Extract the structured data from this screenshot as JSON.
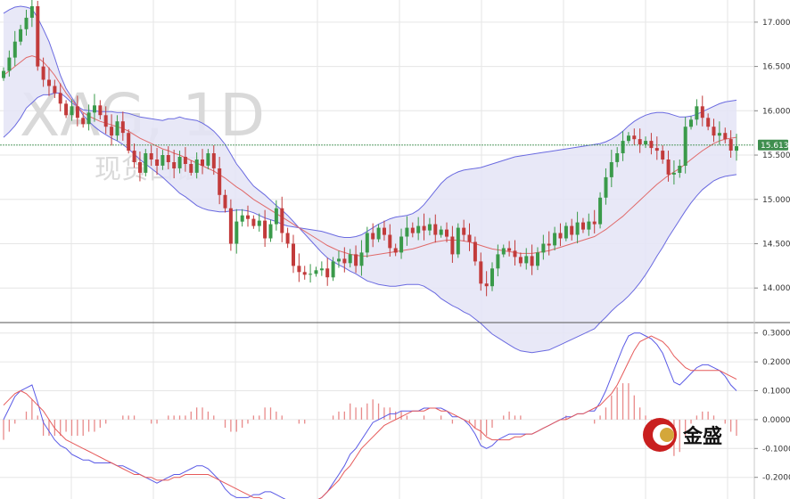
{
  "watermark": {
    "symbol": "XAG, 1D",
    "subtitle": "现货白银"
  },
  "logo": {
    "text": "金盛"
  },
  "colors": {
    "up": "#3a9a4a",
    "down": "#c23b3b",
    "band": "#6a6ae0",
    "band_fill": "#e4e4f6",
    "ma": "#e06a6a",
    "macd": "#5a5ae6",
    "signal": "#e65a5a",
    "hist": "#e88a8a",
    "price_tag": "#3e8e4e",
    "grid": "#e6e6e6"
  },
  "chart_data": [
    {
      "type": "candlestick",
      "symbol": "XAG",
      "interval": "1D",
      "y_ticks": [
        "17.000",
        "16.500",
        "16.000",
        "15.500",
        "15.000",
        "14.500",
        "14.000"
      ],
      "y_tick_values": [
        17.0,
        16.5,
        16.0,
        15.5,
        15.0,
        14.5,
        14.0
      ],
      "ylim": [
        13.63,
        17.25
      ],
      "last_price": 15.613,
      "last_price_label": "15.613",
      "indicators": [
        "Bollinger Bands",
        "Moving Average"
      ],
      "grid": true,
      "closes": [
        16.45,
        16.6,
        16.78,
        16.92,
        17.05,
        17.18,
        16.5,
        16.35,
        16.28,
        16.2,
        16.08,
        15.95,
        16.05,
        15.92,
        15.85,
        15.98,
        16.06,
        15.95,
        15.82,
        15.72,
        15.88,
        15.75,
        15.55,
        15.42,
        15.3,
        15.52,
        15.45,
        15.38,
        15.5,
        15.42,
        15.35,
        15.48,
        15.4,
        15.3,
        15.45,
        15.38,
        15.52,
        15.35,
        15.05,
        14.9,
        14.5,
        14.75,
        14.82,
        14.78,
        14.7,
        14.76,
        14.56,
        14.72,
        14.9,
        14.62,
        14.5,
        14.25,
        14.18,
        14.15,
        14.16,
        14.2,
        14.22,
        14.12,
        14.3,
        14.33,
        14.28,
        14.38,
        14.25,
        14.4,
        14.62,
        14.55,
        14.68,
        14.6,
        14.45,
        14.4,
        14.58,
        14.68,
        14.62,
        14.7,
        14.65,
        14.72,
        14.6,
        14.66,
        14.58,
        14.38,
        14.68,
        14.6,
        14.52,
        14.3,
        14.05,
        14.02,
        14.22,
        14.38,
        14.45,
        14.42,
        14.35,
        14.28,
        14.36,
        14.25,
        14.4,
        14.5,
        14.48,
        14.62,
        14.56,
        14.7,
        14.6,
        14.74,
        14.66,
        14.75,
        14.72,
        15.02,
        15.25,
        15.42,
        15.52,
        15.66,
        15.72,
        15.68,
        15.62,
        15.66,
        15.58,
        15.55,
        15.45,
        15.28,
        15.3,
        15.38,
        15.82,
        15.9,
        16.05,
        15.92,
        15.82,
        15.72,
        15.75,
        15.68,
        15.55,
        15.6
      ],
      "bb_upper": [
        17.1,
        17.14,
        17.17,
        17.18,
        17.17,
        17.15,
        17.05,
        16.92,
        16.78,
        16.6,
        16.4,
        16.25,
        16.15,
        16.05,
        15.95,
        15.88,
        15.82,
        15.77,
        15.73,
        15.69,
        15.66,
        15.62,
        15.57,
        15.51,
        15.45,
        15.4,
        15.35,
        15.3,
        15.25,
        15.19,
        15.13,
        15.07,
        15.03,
        14.98,
        14.93,
        14.9,
        14.88,
        14.87,
        14.86,
        14.86,
        14.87,
        14.88,
        14.88,
        14.87,
        14.85,
        14.82,
        14.79,
        14.77,
        14.75,
        14.72,
        14.7,
        14.69,
        14.68,
        14.67,
        14.66,
        14.65,
        14.64,
        14.62,
        14.6,
        14.58,
        14.57,
        14.57,
        14.58,
        14.6,
        14.64,
        14.68,
        14.72,
        14.75,
        14.78,
        14.8,
        14.81,
        14.82,
        14.84,
        14.88,
        14.94,
        15.02,
        15.1,
        15.18,
        15.24,
        15.28,
        15.31,
        15.33,
        15.34,
        15.35,
        15.36,
        15.38,
        15.4,
        15.42,
        15.44,
        15.46,
        15.48,
        15.49,
        15.5,
        15.51,
        15.52,
        15.53,
        15.54,
        15.55,
        15.56,
        15.57,
        15.58,
        15.59,
        15.6,
        15.61,
        15.62,
        15.63,
        15.65,
        15.68,
        15.72,
        15.77,
        15.83,
        15.88,
        15.92,
        15.95,
        15.97,
        15.98,
        15.98,
        15.97,
        15.95,
        15.93,
        15.93,
        15.94,
        15.96,
        15.99,
        16.02,
        16.05,
        16.08,
        16.1,
        16.11,
        16.12
      ],
      "bb_mid": [
        16.4,
        16.45,
        16.5,
        16.55,
        16.6,
        16.62,
        16.6,
        16.55,
        16.48,
        16.4,
        16.3,
        16.2,
        16.12,
        16.05,
        15.98,
        15.94,
        15.91,
        15.88,
        15.86,
        15.84,
        15.82,
        15.8,
        15.77,
        15.73,
        15.69,
        15.66,
        15.63,
        15.6,
        15.57,
        15.55,
        15.52,
        15.5,
        15.47,
        15.44,
        15.41,
        15.38,
        15.35,
        15.32,
        15.28,
        15.24,
        15.19,
        15.14,
        15.1,
        15.05,
        15.0,
        14.96,
        14.92,
        14.88,
        14.84,
        14.8,
        14.76,
        14.72,
        14.68,
        14.64,
        14.6,
        14.56,
        14.52,
        14.48,
        14.45,
        14.42,
        14.4,
        14.38,
        14.37,
        14.36,
        14.36,
        14.37,
        14.38,
        14.39,
        14.4,
        14.41,
        14.42,
        14.43,
        14.44,
        14.46,
        14.48,
        14.5,
        14.52,
        14.53,
        14.54,
        14.54,
        14.54,
        14.53,
        14.52,
        14.5,
        14.48,
        14.46,
        14.44,
        14.43,
        14.42,
        14.41,
        14.4,
        14.39,
        14.39,
        14.39,
        14.4,
        14.41,
        14.42,
        14.44,
        14.46,
        14.48,
        14.5,
        14.52,
        14.54,
        14.56,
        14.58,
        14.62,
        14.66,
        14.71,
        14.76,
        14.81,
        14.87,
        14.93,
        14.99,
        15.05,
        15.11,
        15.17,
        15.22,
        15.27,
        15.31,
        15.35,
        15.4,
        15.45,
        15.5,
        15.55,
        15.59,
        15.63,
        15.66,
        15.68,
        15.69,
        15.7
      ],
      "bb_lower": [
        15.7,
        15.76,
        15.83,
        15.92,
        16.03,
        16.09,
        16.15,
        16.18,
        16.18,
        16.2,
        16.2,
        16.15,
        16.09,
        16.05,
        16.01,
        16.0,
        16.0,
        15.99,
        15.99,
        15.99,
        15.98,
        15.98,
        15.97,
        15.95,
        15.93,
        15.92,
        15.91,
        15.9,
        15.89,
        15.91,
        15.91,
        15.93,
        15.91,
        15.9,
        15.89,
        15.86,
        15.82,
        15.77,
        15.7,
        15.62,
        15.51,
        15.4,
        15.32,
        15.23,
        15.15,
        15.1,
        15.05,
        14.99,
        14.93,
        14.88,
        14.82,
        14.75,
        14.68,
        14.61,
        14.54,
        14.47,
        14.4,
        14.34,
        14.3,
        14.26,
        14.23,
        14.19,
        14.16,
        14.12,
        14.08,
        14.06,
        14.04,
        14.03,
        14.02,
        14.02,
        14.03,
        14.04,
        14.04,
        14.04,
        14.02,
        13.98,
        13.94,
        13.88,
        13.84,
        13.8,
        13.77,
        13.73,
        13.7,
        13.65,
        13.6,
        13.54,
        13.48,
        13.44,
        13.4,
        13.36,
        13.32,
        13.29,
        13.28,
        13.27,
        13.28,
        13.29,
        13.3,
        13.33,
        13.36,
        13.39,
        13.42,
        13.45,
        13.48,
        13.51,
        13.54,
        13.61,
        13.67,
        13.74,
        13.8,
        13.85,
        13.91,
        13.98,
        14.06,
        14.15,
        14.25,
        14.36,
        14.46,
        14.57,
        14.67,
        14.77,
        14.87,
        14.96,
        15.04,
        15.11,
        15.16,
        15.21,
        15.24,
        15.26,
        15.27,
        15.28
      ]
    },
    {
      "type": "macd",
      "y_ticks": [
        "0.3000",
        "0.2000",
        "0.1000",
        "0.0000",
        "-0.1000",
        "-0.2000"
      ],
      "y_tick_values": [
        0.3,
        0.2,
        0.1,
        0.0,
        -0.1,
        -0.2
      ],
      "ylim": [
        -0.275,
        0.33
      ],
      "series_names": [
        "MACD",
        "Signal",
        "Histogram"
      ],
      "macd": [
        0.0,
        0.04,
        0.08,
        0.1,
        0.11,
        0.12,
        0.06,
        -0.01,
        -0.04,
        -0.07,
        -0.09,
        -0.1,
        -0.12,
        -0.13,
        -0.14,
        -0.14,
        -0.15,
        -0.15,
        -0.15,
        -0.15,
        -0.16,
        -0.16,
        -0.17,
        -0.18,
        -0.19,
        -0.2,
        -0.21,
        -0.22,
        -0.21,
        -0.2,
        -0.19,
        -0.19,
        -0.18,
        -0.17,
        -0.16,
        -0.16,
        -0.17,
        -0.19,
        -0.21,
        -0.24,
        -0.26,
        -0.27,
        -0.27,
        -0.27,
        -0.26,
        -0.26,
        -0.25,
        -0.25,
        -0.26,
        -0.27,
        -0.28,
        -0.29,
        -0.3,
        -0.3,
        -0.29,
        -0.28,
        -0.27,
        -0.25,
        -0.22,
        -0.19,
        -0.16,
        -0.12,
        -0.1,
        -0.07,
        -0.04,
        -0.01,
        0.0,
        0.01,
        0.02,
        0.02,
        0.03,
        0.03,
        0.03,
        0.03,
        0.04,
        0.04,
        0.04,
        0.04,
        0.03,
        0.01,
        0.01,
        0.0,
        -0.02,
        -0.05,
        -0.09,
        -0.1,
        -0.09,
        -0.07,
        -0.06,
        -0.05,
        -0.05,
        -0.05,
        -0.05,
        -0.05,
        -0.04,
        -0.03,
        -0.02,
        -0.01,
        0.0,
        0.01,
        0.01,
        0.02,
        0.02,
        0.03,
        0.03,
        0.06,
        0.1,
        0.15,
        0.2,
        0.25,
        0.29,
        0.3,
        0.3,
        0.29,
        0.28,
        0.26,
        0.23,
        0.18,
        0.13,
        0.12,
        0.14,
        0.16,
        0.18,
        0.19,
        0.19,
        0.18,
        0.17,
        0.15,
        0.12,
        0.1
      ],
      "signal": [
        0.05,
        0.07,
        0.09,
        0.1,
        0.09,
        0.07,
        0.05,
        0.03,
        0.0,
        -0.03,
        -0.05,
        -0.07,
        -0.08,
        -0.09,
        -0.1,
        -0.11,
        -0.12,
        -0.13,
        -0.14,
        -0.15,
        -0.16,
        -0.17,
        -0.18,
        -0.19,
        -0.19,
        -0.2,
        -0.2,
        -0.21,
        -0.21,
        -0.21,
        -0.2,
        -0.2,
        -0.19,
        -0.19,
        -0.19,
        -0.19,
        -0.19,
        -0.2,
        -0.21,
        -0.22,
        -0.23,
        -0.24,
        -0.25,
        -0.26,
        -0.27,
        -0.27,
        -0.28,
        -0.28,
        -0.28,
        -0.28,
        -0.28,
        -0.29,
        -0.29,
        -0.29,
        -0.29,
        -0.28,
        -0.27,
        -0.25,
        -0.23,
        -0.21,
        -0.18,
        -0.16,
        -0.13,
        -0.1,
        -0.08,
        -0.06,
        -0.04,
        -0.02,
        -0.01,
        0.0,
        0.01,
        0.02,
        0.03,
        0.03,
        0.03,
        0.04,
        0.04,
        0.03,
        0.03,
        0.02,
        0.01,
        0.0,
        -0.01,
        -0.03,
        -0.04,
        -0.06,
        -0.07,
        -0.07,
        -0.07,
        -0.07,
        -0.06,
        -0.06,
        -0.05,
        -0.05,
        -0.04,
        -0.03,
        -0.02,
        -0.01,
        0.0,
        0.0,
        0.01,
        0.02,
        0.02,
        0.03,
        0.04,
        0.05,
        0.07,
        0.09,
        0.12,
        0.16,
        0.2,
        0.24,
        0.27,
        0.28,
        0.29,
        0.28,
        0.27,
        0.25,
        0.22,
        0.2,
        0.18,
        0.17,
        0.17,
        0.17,
        0.17,
        0.17,
        0.17,
        0.16,
        0.15,
        0.14
      ]
    }
  ]
}
